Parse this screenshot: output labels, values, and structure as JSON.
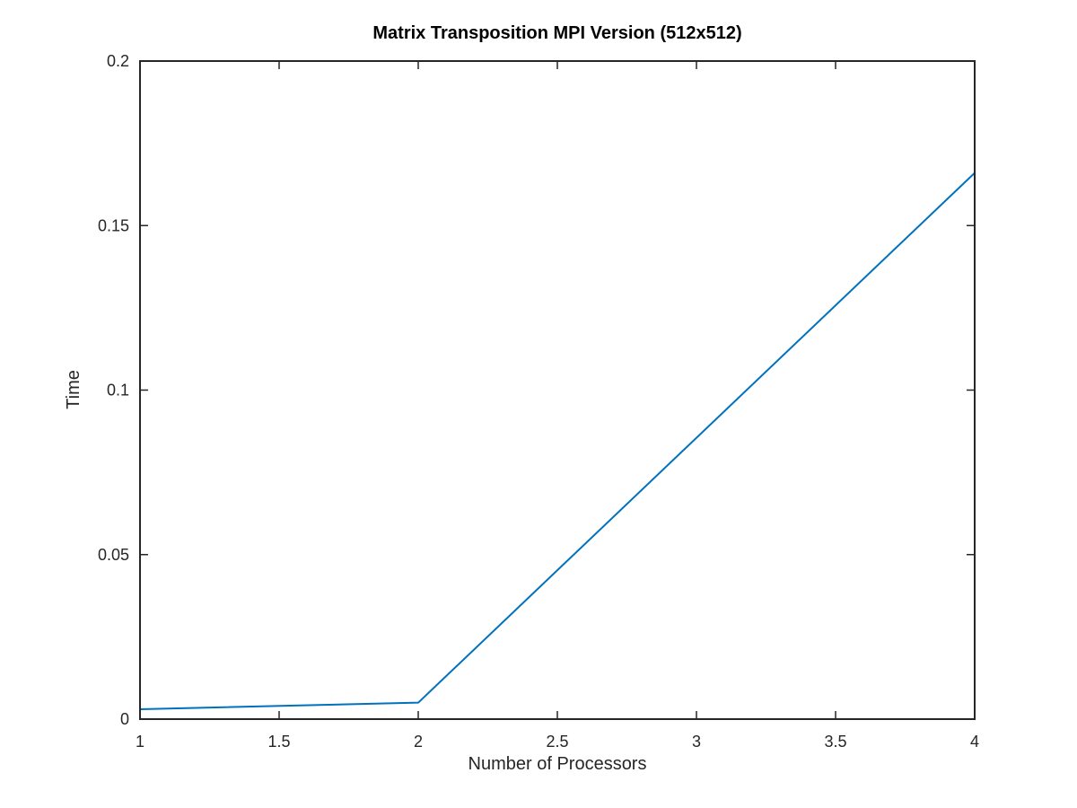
{
  "chart_data": {
    "type": "line",
    "title": "Matrix Transposition MPI Version (512x512)",
    "xlabel": "Number of Processors",
    "ylabel": "Time",
    "xlim": [
      1,
      4
    ],
    "ylim": [
      0,
      0.2
    ],
    "x_ticks": [
      1,
      1.5,
      2,
      2.5,
      3,
      3.5,
      4
    ],
    "x_tick_labels": [
      "1",
      "1.5",
      "2",
      "2.5",
      "3",
      "3.5",
      "4"
    ],
    "y_ticks": [
      0,
      0.05,
      0.1,
      0.15,
      0.2
    ],
    "y_tick_labels": [
      "0",
      "0.05",
      "0.1",
      "0.15",
      "0.2"
    ],
    "grid": false,
    "series": [
      {
        "color": "#0072BD",
        "x": [
          1,
          2,
          4
        ],
        "y": [
          0.003,
          0.005,
          0.166
        ]
      }
    ]
  }
}
